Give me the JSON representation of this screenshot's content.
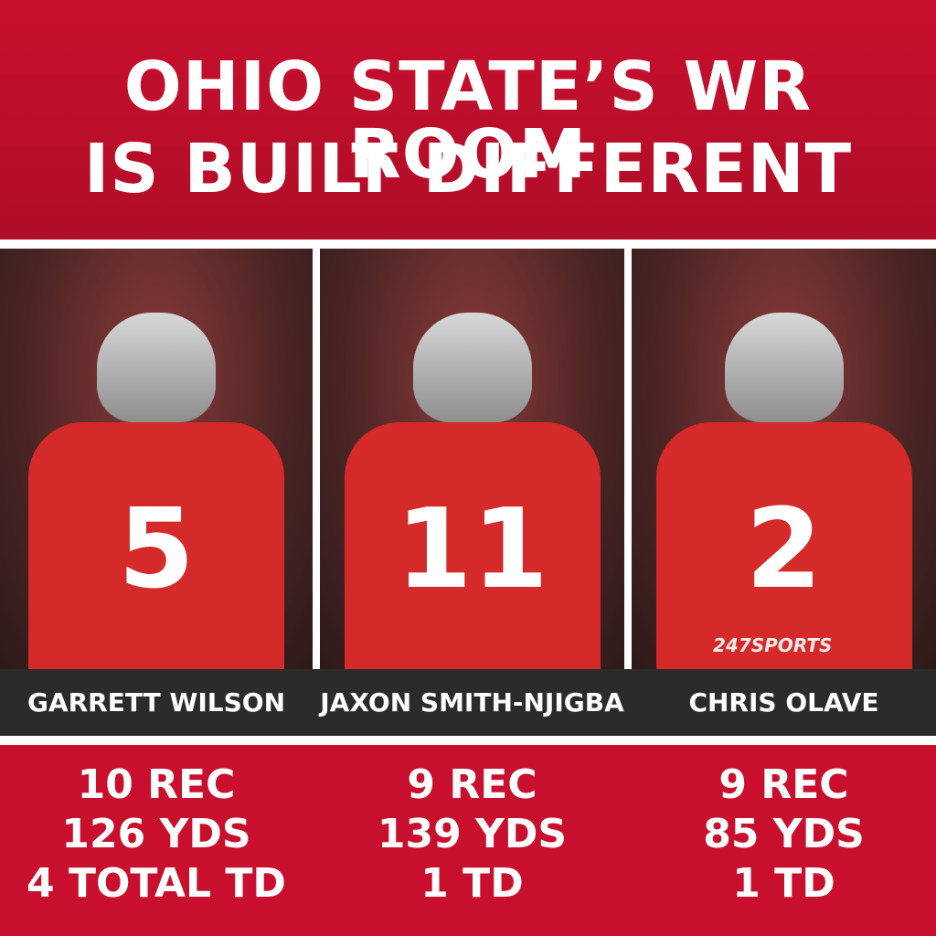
{
  "header": {
    "title_lines": [
      "OHIO STATE’S WR ROOM",
      "IS BUILT DIFFERENT"
    ]
  },
  "players": [
    {
      "jersey": "5",
      "name": "GARRETT WILSON",
      "stats": [
        "10 REC",
        "126 YDS",
        "4 TOTAL TD"
      ]
    },
    {
      "jersey": "11",
      "name": "JAXON SMITH-NJIGBA",
      "stats": [
        "9 REC",
        "139 YDS",
        "1 TD"
      ]
    },
    {
      "jersey": "2",
      "name": "CHRIS OLAVE",
      "stats": [
        "9 REC",
        "85 YDS",
        "1 TD"
      ]
    }
  ],
  "watermark": "247SPORTS"
}
